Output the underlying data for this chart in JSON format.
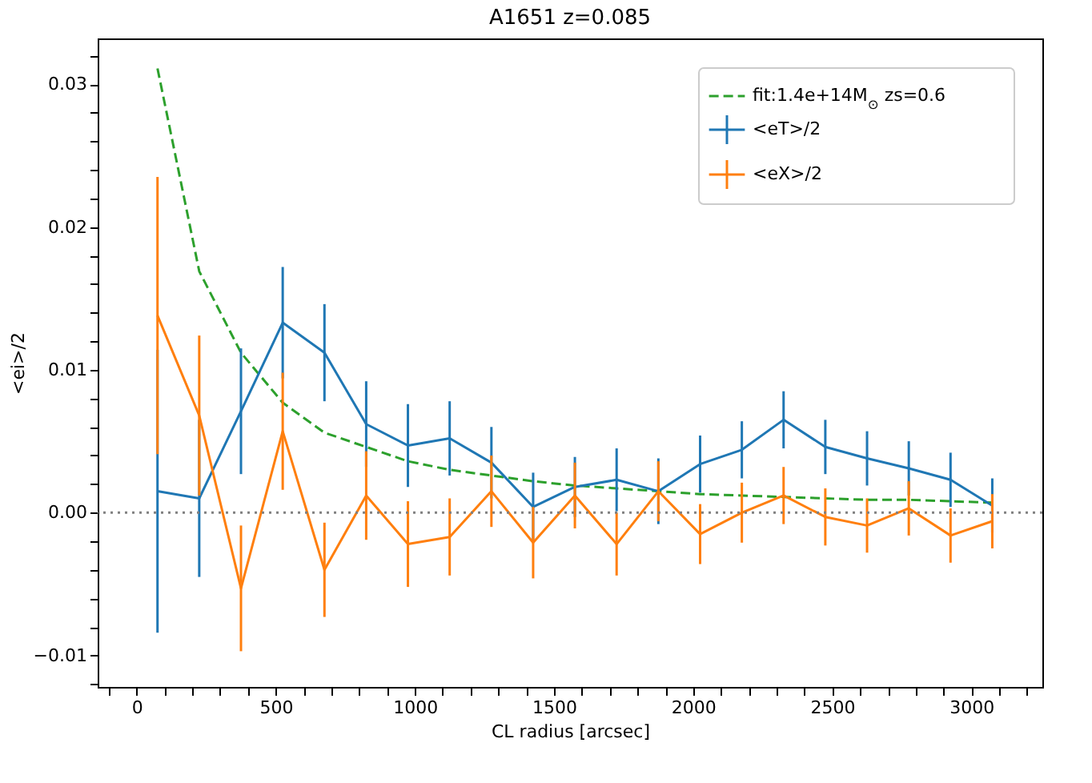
{
  "chart_data": {
    "type": "line",
    "title": "A1651 z=0.085",
    "xlabel": "CL radius [arcsec]",
    "ylabel": "<ei>/2",
    "x": [
      75,
      225,
      375,
      525,
      675,
      825,
      975,
      1125,
      1275,
      1425,
      1575,
      1725,
      1875,
      2025,
      2175,
      2325,
      2475,
      2625,
      2775,
      2925,
      3075
    ],
    "series": [
      {
        "name": "fit:1.4e+14M$_{⊙}$ zs=0.6",
        "color": "#2ca02c",
        "line_style": "dashed",
        "values": [
          0.0311,
          0.0169,
          0.0112,
          0.0077,
          0.0056,
          0.0046,
          0.0036,
          0.003,
          0.0026,
          0.0022,
          0.0019,
          0.0017,
          0.0015,
          0.0013,
          0.0012,
          0.0011,
          0.001,
          0.0009,
          0.0009,
          0.0008,
          0.0007
        ]
      },
      {
        "name": "<eT>/2",
        "color": "#1f77b4",
        "values": [
          0.0015,
          0.001,
          0.0071,
          0.0133,
          0.0112,
          0.0062,
          0.0047,
          0.0052,
          0.0035,
          0.0004,
          0.0018,
          0.0023,
          0.0015,
          0.0034,
          0.0044,
          0.0065,
          0.0046,
          0.0038,
          0.0031,
          0.0023,
          0.0005
        ],
        "errors": [
          0.0099,
          0.0055,
          0.0044,
          0.0039,
          0.0034,
          0.003,
          0.0029,
          0.0026,
          0.0025,
          0.0024,
          0.0021,
          0.0022,
          0.0023,
          0.002,
          0.002,
          0.002,
          0.0019,
          0.0019,
          0.0019,
          0.0019,
          0.0019
        ]
      },
      {
        "name": "<eX>/2",
        "color": "#ff7f0e",
        "values": [
          0.0138,
          0.0068,
          -0.0053,
          0.0057,
          -0.004,
          0.0012,
          -0.0022,
          -0.0017,
          0.0015,
          -0.0021,
          0.0012,
          -0.0022,
          0.0015,
          -0.0015,
          0.0,
          0.0012,
          -0.0003,
          -0.0009,
          0.0003,
          -0.0016,
          -0.0006
        ],
        "errors": [
          0.0097,
          0.0056,
          0.0044,
          0.0041,
          0.0033,
          0.0031,
          0.003,
          0.0027,
          0.0025,
          0.0025,
          0.0023,
          0.0022,
          0.0021,
          0.0021,
          0.0021,
          0.002,
          0.002,
          0.0019,
          0.0019,
          0.0019,
          0.0019
        ]
      }
    ],
    "ref_lines": [
      {
        "axis": "y",
        "value": 0,
        "color": "#808080",
        "line_style": "dotted"
      }
    ],
    "xlim": [
      -140,
      3255
    ],
    "ylim": [
      -0.0122,
      0.0332
    ],
    "xticks": [
      {
        "value": -100,
        "label": null
      },
      0,
      {
        "value": 100,
        "label": null
      },
      {
        "value": 200,
        "label": null
      },
      {
        "value": 300,
        "label": null
      },
      {
        "value": 400,
        "label": null
      },
      500,
      {
        "value": 600,
        "label": null
      },
      {
        "value": 700,
        "label": null
      },
      {
        "value": 800,
        "label": null
      },
      {
        "value": 900,
        "label": null
      },
      1000,
      {
        "value": 1100,
        "label": null
      },
      {
        "value": 1200,
        "label": null
      },
      {
        "value": 1300,
        "label": null
      },
      {
        "value": 1400,
        "label": null
      },
      1500,
      {
        "value": 1600,
        "label": null
      },
      {
        "value": 1700,
        "label": null
      },
      {
        "value": 1800,
        "label": null
      },
      {
        "value": 1900,
        "label": null
      },
      2000,
      {
        "value": 2100,
        "label": null
      },
      {
        "value": 2200,
        "label": null
      },
      {
        "value": 2300,
        "label": null
      },
      {
        "value": 2400,
        "label": null
      },
      2500,
      {
        "value": 2600,
        "label": null
      },
      {
        "value": 2700,
        "label": null
      },
      {
        "value": 2800,
        "label": null
      },
      {
        "value": 2900,
        "label": null
      },
      3000,
      {
        "value": 3100,
        "label": null
      },
      {
        "value": 3200,
        "label": null
      }
    ],
    "yticks": [
      {
        "value": -0.012,
        "label": null
      },
      {
        "value": -0.01,
        "label": "−0.01"
      },
      {
        "value": -0.008,
        "label": null
      },
      {
        "value": -0.006,
        "label": null
      },
      {
        "value": -0.004,
        "label": null
      },
      {
        "value": -0.002,
        "label": null
      },
      {
        "value": 0,
        "label": "0.00"
      },
      {
        "value": 0.002,
        "label": null
      },
      {
        "value": 0.004,
        "label": null
      },
      {
        "value": 0.006,
        "label": null
      },
      {
        "value": 0.008,
        "label": null
      },
      {
        "value": 0.01,
        "label": "0.01"
      },
      {
        "value": 0.012,
        "label": null
      },
      {
        "value": 0.014,
        "label": null
      },
      {
        "value": 0.016,
        "label": null
      },
      {
        "value": 0.018,
        "label": null
      },
      {
        "value": 0.02,
        "label": "0.02"
      },
      {
        "value": 0.022,
        "label": null
      },
      {
        "value": 0.024,
        "label": null
      },
      {
        "value": 0.026,
        "label": null
      },
      {
        "value": 0.028,
        "label": null
      },
      {
        "value": 0.03,
        "label": "0.03"
      },
      {
        "value": 0.032,
        "label": null
      }
    ],
    "grid": false,
    "legend": "top right"
  }
}
